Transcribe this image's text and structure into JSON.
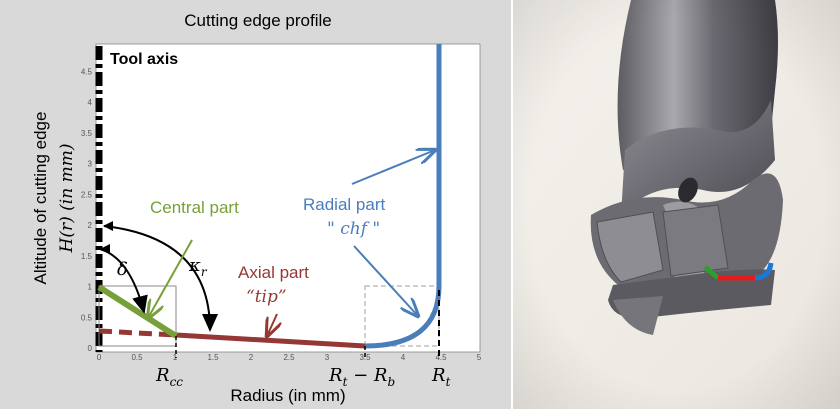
{
  "diagram": {
    "title": "Cutting edge profile",
    "xlabel": "Radius (in mm)",
    "ylabel": "Altitude of cutting edge",
    "ylabel_math": "H(r) (in mm)",
    "tool_axis_label": "Tool axis",
    "x_ticks": [
      "0",
      "0.5",
      "1",
      "1.5",
      "2",
      "2.5",
      "3",
      "3.5",
      "4",
      "4.5",
      "5"
    ],
    "y_ticks": [
      "0",
      "0.5",
      "1",
      "1.5",
      "2",
      "2.5",
      "3",
      "3.5",
      "4",
      "4.5"
    ],
    "central_part": {
      "label": "Central part",
      "color": "#77a03a"
    },
    "radial_part": {
      "label": "Radial part",
      "symbol": "\" chf \"",
      "color": "#4a7ebb"
    },
    "axial_part": {
      "label": "Axial part",
      "symbol": "“tip”",
      "color": "#953735"
    },
    "angle_delta": "δ",
    "angle_kappa": "κ",
    "angle_kappa_sub": "r",
    "r_cc": "R",
    "r_cc_sub": "cc",
    "rt_minus_rb": "R",
    "rt_minus_rb_sub1": "t",
    "rt_minus_rb_mid": " − R",
    "rt_minus_rb_sub2": "b",
    "r_t": "R",
    "r_t_sub": "t"
  },
  "photo": {
    "subject": "end mill cutting tool tip",
    "edge_colors": [
      "#2ca02c",
      "#e41a1c",
      "#1f77d4"
    ]
  }
}
